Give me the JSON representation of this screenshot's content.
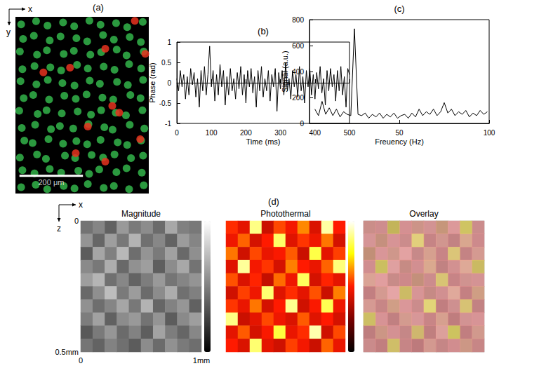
{
  "chart_data": [
    {
      "type": "scatter",
      "title": "(a)",
      "xlabel": "x",
      "ylabel": "y",
      "xlim": [
        0,
        420
      ],
      "ylim": [
        0,
        560
      ],
      "tick_labels": false,
      "scale_bar": {
        "length": 200,
        "label": "200 μm"
      },
      "series": [
        {
          "color": "#33b44a",
          "values": [
            [
              18,
              24
            ],
            [
              65,
              14
            ],
            [
              101,
              28
            ],
            [
              150,
              18
            ],
            [
              185,
              30
            ],
            [
              233,
              12
            ],
            [
              268,
              25
            ],
            [
              317,
              20
            ],
            [
              352,
              33
            ],
            [
              401,
              16
            ],
            [
              24,
              70
            ],
            [
              58,
              60
            ],
            [
              108,
              75
            ],
            [
              142,
              62
            ],
            [
              192,
              68
            ],
            [
              226,
              78
            ],
            [
              276,
              58
            ],
            [
              310,
              72
            ],
            [
              360,
              64
            ],
            [
              395,
              80
            ],
            [
              14,
              110
            ],
            [
              68,
              120
            ],
            [
              99,
              106
            ],
            [
              152,
              118
            ],
            [
              184,
              108
            ],
            [
              236,
              120
            ],
            [
              270,
              112
            ],
            [
              319,
              104
            ],
            [
              350,
              122
            ],
            [
              404,
              110
            ],
            [
              22,
              166
            ],
            [
              60,
              156
            ],
            [
              110,
              160
            ],
            [
              144,
              170
            ],
            [
              194,
              152
            ],
            [
              228,
              164
            ],
            [
              278,
              158
            ],
            [
              312,
              168
            ],
            [
              358,
              150
            ],
            [
              396,
              164
            ],
            [
              16,
              204
            ],
            [
              66,
              214
            ],
            [
              102,
              200
            ],
            [
              148,
              210
            ],
            [
              186,
              218
            ],
            [
              234,
              202
            ],
            [
              266,
              212
            ],
            [
              320,
              206
            ],
            [
              354,
              216
            ],
            [
              402,
              200
            ],
            [
              26,
              258
            ],
            [
              56,
              248
            ],
            [
              106,
              262
            ],
            [
              154,
              250
            ],
            [
              190,
              260
            ],
            [
              224,
              246
            ],
            [
              274,
              256
            ],
            [
              308,
              262
            ],
            [
              362,
              248
            ],
            [
              394,
              258
            ],
            [
              12,
              298
            ],
            [
              70,
              308
            ],
            [
              98,
              296
            ],
            [
              146,
              306
            ],
            [
              196,
              300
            ],
            [
              238,
              310
            ],
            [
              270,
              296
            ],
            [
              316,
              304
            ],
            [
              348,
              312
            ],
            [
              400,
              296
            ],
            [
              20,
              352
            ],
            [
              62,
              342
            ],
            [
              112,
              356
            ],
            [
              140,
              346
            ],
            [
              182,
              354
            ],
            [
              230,
              340
            ],
            [
              280,
              350
            ],
            [
              306,
              358
            ],
            [
              360,
              342
            ],
            [
              406,
              354
            ],
            [
              28,
              392
            ],
            [
              54,
              400
            ],
            [
              104,
              388
            ],
            [
              150,
              402
            ],
            [
              192,
              394
            ],
            [
              226,
              404
            ],
            [
              268,
              390
            ],
            [
              322,
              398
            ],
            [
              352,
              406
            ],
            [
              396,
              392
            ],
            [
              14,
              446
            ],
            [
              68,
              436
            ],
            [
              96,
              450
            ],
            [
              156,
              440
            ],
            [
              188,
              448
            ],
            [
              240,
              438
            ],
            [
              276,
              446
            ],
            [
              312,
              436
            ],
            [
              364,
              448
            ],
            [
              402,
              440
            ],
            [
              22,
              486
            ],
            [
              60,
              496
            ],
            [
              108,
              482
            ],
            [
              144,
              494
            ],
            [
              198,
              488
            ],
            [
              232,
              498
            ],
            [
              264,
              484
            ],
            [
              318,
              492
            ],
            [
              350,
              480
            ],
            [
              398,
              494
            ],
            [
              18,
              540
            ],
            [
              64,
              532
            ],
            [
              100,
              546
            ],
            [
              152,
              536
            ],
            [
              186,
              544
            ],
            [
              228,
              530
            ],
            [
              278,
              542
            ],
            [
              310,
              536
            ],
            [
              358,
              546
            ],
            [
              404,
              534
            ]
          ]
        },
        {
          "color": "#e8321e",
          "values": [
            [
              376,
              13
            ],
            [
              409,
              117
            ],
            [
              283,
              101
            ],
            [
              172,
              161
            ],
            [
              88,
              176
            ],
            [
              305,
              282
            ],
            [
              327,
              304
            ],
            [
              228,
              348
            ],
            [
              393,
              388
            ],
            [
              190,
              432
            ],
            [
              283,
              459
            ]
          ]
        }
      ]
    },
    {
      "type": "line",
      "title": "(b)",
      "xlabel": "Time (ms)",
      "ylabel": "Phase (rad)",
      "color": "#000000",
      "x": [
        0,
        5,
        10,
        15,
        20,
        25,
        30,
        35,
        40,
        45,
        50,
        55,
        60,
        65,
        70,
        75,
        80,
        85,
        90,
        95,
        100,
        105,
        110,
        115,
        120,
        125,
        130,
        135,
        140,
        145,
        150,
        155,
        160,
        165,
        170,
        175,
        180,
        185,
        190,
        195,
        200,
        205,
        210,
        215,
        220,
        225,
        230,
        235,
        240,
        245,
        250,
        255,
        260,
        265,
        270,
        275,
        280,
        285,
        290,
        295,
        300,
        305,
        310,
        315,
        320,
        325,
        330,
        335,
        340,
        345,
        350,
        355,
        360,
        365,
        370,
        375,
        380,
        385,
        390,
        395,
        400,
        405,
        410,
        415,
        420,
        425,
        430,
        435,
        440,
        445,
        450,
        455,
        460,
        465,
        470,
        475,
        480,
        485,
        490,
        495,
        500
      ],
      "values": [
        0.1,
        -0.2,
        0.3,
        -0.1,
        0.2,
        -0.4,
        0.15,
        -0.3,
        0.35,
        -0.05,
        0.25,
        -0.35,
        0.1,
        -0.6,
        0.3,
        -0.2,
        0.4,
        -0.3,
        0.2,
        0.9,
        -0.1,
        0.3,
        -0.45,
        0.2,
        -0.3,
        0.45,
        -0.1,
        0.3,
        -0.55,
        0.15,
        -0.3,
        0.35,
        -0.2,
        0.1,
        -0.4,
        0.25,
        -0.15,
        0.4,
        -0.3,
        0.2,
        -0.5,
        0.3,
        -0.1,
        0.35,
        -0.25,
        0.15,
        -0.6,
        0.3,
        -0.2,
        0.4,
        -0.35,
        0.1,
        -0.2,
        0.3,
        -0.45,
        0.2,
        -0.1,
        0.35,
        -0.7,
        0.25,
        -0.15,
        0.3,
        -0.3,
        0.5,
        -0.2,
        0.1,
        -0.4,
        0.3,
        -0.1,
        0.2,
        -0.35,
        0.4,
        -0.2,
        0.15,
        -0.5,
        0.3,
        -0.1,
        0.35,
        -0.3,
        0.2,
        -0.4,
        0.25,
        -0.15,
        0.4,
        -0.25,
        0.1,
        -0.55,
        0.3,
        -0.2,
        0.35,
        -0.1,
        0.2,
        -0.45,
        0.3,
        -0.2,
        0.4,
        -0.3,
        0.15,
        -0.6,
        0.35,
        0.2
      ],
      "xlim": [
        0,
        500
      ],
      "xticks": [
        0,
        100,
        200,
        300,
        400,
        500
      ],
      "ylim": [
        -1,
        1
      ],
      "yticks": [
        -1,
        -0.5,
        0,
        0.5,
        1
      ]
    },
    {
      "type": "line",
      "title": "(c)",
      "xlabel": "Freuency (Hz)",
      "ylabel": "Signal (a.u.)",
      "color": "#000000",
      "x": [
        3,
        5,
        7,
        9,
        11,
        13,
        15,
        17,
        19,
        21,
        23,
        25,
        27,
        29,
        31,
        33,
        35,
        37,
        39,
        41,
        43,
        45,
        47,
        49,
        51,
        53,
        55,
        57,
        59,
        61,
        63,
        65,
        67,
        69,
        71,
        73,
        75,
        77,
        79,
        81,
        83,
        85,
        87,
        89,
        91,
        93,
        95,
        97,
        99
      ],
      "values": [
        110,
        60,
        170,
        70,
        120,
        60,
        110,
        50,
        90,
        70,
        60,
        730,
        70,
        60,
        80,
        40,
        70,
        50,
        80,
        40,
        70,
        50,
        80,
        40,
        60,
        70,
        40,
        80,
        50,
        110,
        60,
        90,
        70,
        110,
        60,
        90,
        160,
        80,
        110,
        60,
        90,
        70,
        100,
        50,
        80,
        60,
        100,
        70,
        90
      ],
      "xlim": [
        0,
        100
      ],
      "xticks": [
        50,
        100
      ],
      "ylim": [
        0,
        800
      ],
      "yticks": [
        0,
        200,
        400,
        600,
        800
      ]
    },
    {
      "type": "heatmap",
      "title": "(d)",
      "xlabel": "x",
      "ylabel": "z",
      "xlim": [
        0,
        1
      ],
      "xticks": [
        0,
        {
          "value": 1,
          "label": "1mm"
        }
      ],
      "ylim": [
        0,
        0.5
      ],
      "yticks": [
        0,
        {
          "value": 0.5,
          "label": "0.5mm"
        }
      ],
      "panels": [
        {
          "title": "Magnitude",
          "colorbar": {
            "range": [
              0,
              1
            ]
          },
          "cells": [
            [
              0.45,
              0.52,
              0.38,
              0.6,
              0.48,
              0.55,
              0.42,
              0.66,
              0.5,
              0.47
            ],
            [
              0.58,
              0.4,
              0.62,
              0.47,
              0.7,
              0.44,
              0.53,
              0.39,
              0.61,
              0.52
            ],
            [
              0.36,
              0.65,
              0.5,
              0.72,
              0.43,
              0.58,
              0.48,
              0.63,
              0.41,
              0.56
            ],
            [
              0.54,
              0.47,
              0.68,
              0.41,
              0.57,
              0.62,
              0.37,
              0.55,
              0.66,
              0.45
            ],
            [
              0.62,
              0.71,
              0.44,
              0.53,
              0.39,
              0.49,
              0.6,
              0.46,
              0.52,
              0.58
            ],
            [
              0.41,
              0.56,
              0.74,
              0.48,
              0.61,
              0.42,
              0.55,
              0.68,
              0.44,
              0.5
            ],
            [
              0.57,
              0.43,
              0.52,
              0.65,
              0.47,
              0.7,
              0.4,
              0.51,
              0.59,
              0.38
            ],
            [
              0.49,
              0.63,
              0.38,
              0.55,
              0.6,
              0.45,
              0.58,
              0.36,
              0.54,
              0.62
            ],
            [
              0.35,
              0.48,
              0.59,
              0.42,
              0.51,
              0.37,
              0.64,
              0.49,
              0.4,
              0.53
            ],
            [
              0.46,
              0.39,
              0.51,
              0.44,
              0.36,
              0.55,
              0.42,
              0.57,
              0.48,
              0.43
            ]
          ]
        },
        {
          "title": "Photothermal",
          "colorbar": {
            "range": [
              0,
              1
            ]
          },
          "cells": [
            [
              0.52,
              0.45,
              0.88,
              0.4,
              0.55,
              0.48,
              0.62,
              0.43,
              0.91,
              0.5
            ],
            [
              0.47,
              0.58,
              0.42,
              0.5,
              0.85,
              0.44,
              0.53,
              0.47,
              0.6,
              0.42
            ],
            [
              0.6,
              0.41,
              0.55,
              0.46,
              0.49,
              0.57,
              0.4,
              0.82,
              0.45,
              0.54
            ],
            [
              0.44,
              0.9,
              0.48,
              0.53,
              0.42,
              0.61,
              0.5,
              0.46,
              0.58,
              0.87
            ],
            [
              0.56,
              0.43,
              0.51,
              0.39,
              0.59,
              0.47,
              0.84,
              0.42,
              0.51,
              0.45
            ],
            [
              0.41,
              0.54,
              0.47,
              0.86,
              0.44,
              0.52,
              0.45,
              0.56,
              0.4,
              0.61
            ],
            [
              0.53,
              0.46,
              0.6,
              0.42,
              0.5,
              0.89,
              0.41,
              0.49,
              0.83,
              0.47
            ],
            [
              0.88,
              0.4,
              0.45,
              0.55,
              0.47,
              0.43,
              0.57,
              0.44,
              0.5,
              0.42
            ],
            [
              0.45,
              0.57,
              0.42,
              0.49,
              0.81,
              0.46,
              0.52,
              0.92,
              0.41,
              0.55
            ],
            [
              0.5,
              0.43,
              0.86,
              0.45,
              0.41,
              0.54,
              0.48,
              0.4,
              0.58,
              0.46
            ]
          ]
        },
        {
          "title": "Overlay"
        }
      ]
    }
  ]
}
